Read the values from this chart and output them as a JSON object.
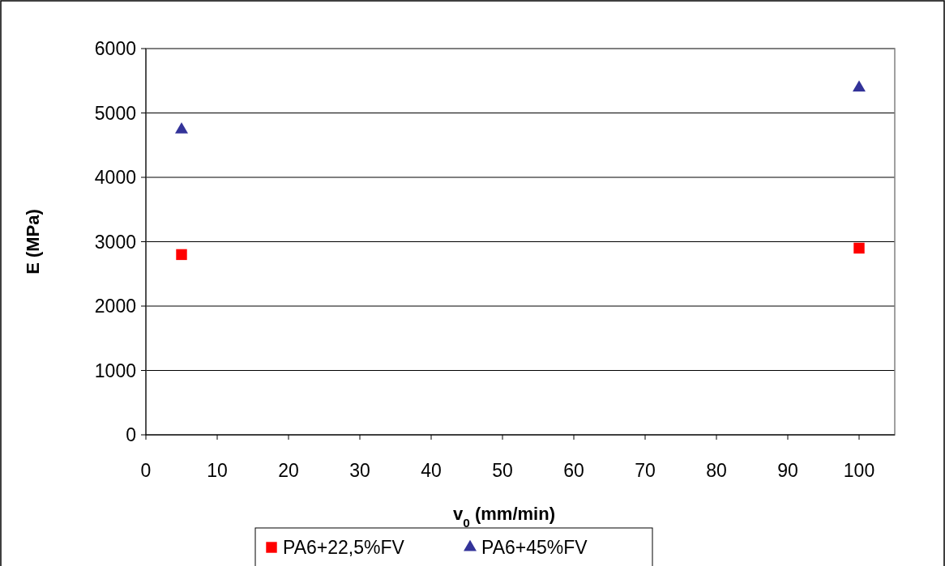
{
  "chart_data": {
    "type": "scatter",
    "xlabel": "v$_{0}$ (mm/min)",
    "ylabel": "E (MPa)",
    "xlim": [
      0,
      105
    ],
    "xticks": [
      0,
      10,
      20,
      30,
      40,
      50,
      60,
      70,
      80,
      90,
      100
    ],
    "ylim": [
      0,
      6000
    ],
    "yticks": [
      0,
      1000,
      2000,
      3000,
      4000,
      5000,
      6000
    ],
    "grid": "y",
    "legend": "bottom",
    "x": [
      5,
      100
    ],
    "series": [
      {
        "name": "PA6+22,5%FV",
        "color": "#ff0000",
        "marker": "square",
        "values": [
          2800,
          2900
        ]
      },
      {
        "name": "PA6+45%FV",
        "color": "#333399",
        "marker": "triangle",
        "values": [
          4740,
          5390
        ]
      }
    ]
  }
}
